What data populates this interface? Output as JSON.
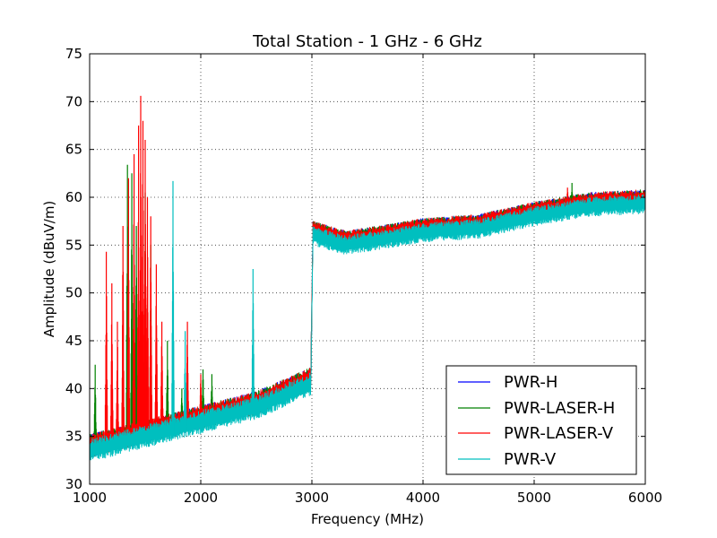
{
  "chart_data": {
    "type": "line",
    "title": "Total Station - 1 GHz - 6 GHz",
    "xlabel": "Frequency (MHz)",
    "ylabel": "Amplitude (dBuV/m)",
    "xlim": [
      1000,
      6000
    ],
    "ylim": [
      30,
      75
    ],
    "xticks": [
      1000,
      2000,
      3000,
      4000,
      5000,
      6000
    ],
    "yticks": [
      30,
      35,
      40,
      45,
      50,
      55,
      60,
      65,
      70,
      75
    ],
    "grid": true,
    "legend_position": "lower-right",
    "series": [
      {
        "name": "PWR-H",
        "color": "#0000ff",
        "baseline": [
          [
            1000,
            34
          ],
          [
            1500,
            35.5
          ],
          [
            2000,
            37
          ],
          [
            2500,
            38.5
          ],
          [
            2990,
            41
          ],
          [
            3010,
            56.5
          ],
          [
            3300,
            55.5
          ],
          [
            3600,
            56
          ],
          [
            4000,
            56.8
          ],
          [
            4500,
            57.2
          ],
          [
            5000,
            58.5
          ],
          [
            5500,
            59.5
          ],
          [
            6000,
            59.8
          ]
        ],
        "spikes": []
      },
      {
        "name": "PWR-LASER-H",
        "color": "#008000",
        "baseline": [
          [
            1000,
            34
          ],
          [
            1500,
            35.5
          ],
          [
            2000,
            37
          ],
          [
            2500,
            38.5
          ],
          [
            2990,
            41
          ],
          [
            3010,
            56.5
          ],
          [
            3300,
            55.5
          ],
          [
            3600,
            56
          ],
          [
            4000,
            56.8
          ],
          [
            4500,
            57.2
          ],
          [
            5000,
            58.5
          ],
          [
            5500,
            59.5
          ],
          [
            6000,
            59.8
          ]
        ],
        "spikes": [
          [
            1050,
            42.5
          ],
          [
            1340,
            63.4
          ],
          [
            1380,
            62.5
          ],
          [
            1420,
            57
          ],
          [
            1460,
            52
          ],
          [
            1500,
            60.5
          ],
          [
            1550,
            55
          ],
          [
            1700,
            45
          ],
          [
            1830,
            40
          ],
          [
            2020,
            42
          ],
          [
            2100,
            41.5
          ],
          [
            5340,
            61.5
          ]
        ]
      },
      {
        "name": "PWR-LASER-V",
        "color": "#ff0000",
        "baseline": [
          [
            1000,
            34
          ],
          [
            1500,
            35.5
          ],
          [
            2000,
            37
          ],
          [
            2500,
            38.5
          ],
          [
            2990,
            41
          ],
          [
            3010,
            56.5
          ],
          [
            3300,
            55.5
          ],
          [
            3600,
            56
          ],
          [
            4000,
            56.8
          ],
          [
            4500,
            57.2
          ],
          [
            5000,
            58.5
          ],
          [
            5500,
            59.5
          ],
          [
            6000,
            59.8
          ]
        ],
        "spikes": [
          [
            1150,
            54.3
          ],
          [
            1200,
            51
          ],
          [
            1250,
            47
          ],
          [
            1300,
            57
          ],
          [
            1350,
            62
          ],
          [
            1400,
            64.5
          ],
          [
            1440,
            67.5
          ],
          [
            1460,
            70.6
          ],
          [
            1480,
            68
          ],
          [
            1500,
            66
          ],
          [
            1520,
            60
          ],
          [
            1550,
            58
          ],
          [
            1600,
            53
          ],
          [
            1650,
            47
          ],
          [
            1880,
            47
          ],
          [
            2000,
            41.5
          ],
          [
            5300,
            61
          ]
        ]
      },
      {
        "name": "PWR-V",
        "color": "#00bfbf",
        "baseline": [
          [
            1000,
            33.5
          ],
          [
            1500,
            35
          ],
          [
            2000,
            36.5
          ],
          [
            2500,
            38
          ],
          [
            2990,
            40.5
          ],
          [
            3010,
            56
          ],
          [
            3300,
            55
          ],
          [
            3600,
            55.5
          ],
          [
            4000,
            56.3
          ],
          [
            4500,
            56.7
          ],
          [
            5000,
            58
          ],
          [
            5500,
            59
          ],
          [
            6000,
            59.3
          ]
        ],
        "spikes": [
          [
            1750,
            61.7
          ],
          [
            1860,
            46
          ],
          [
            2470,
            52.5
          ]
        ]
      }
    ]
  }
}
